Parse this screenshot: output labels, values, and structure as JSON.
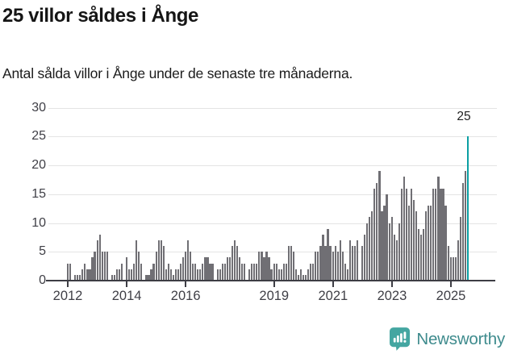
{
  "header": {
    "title": "25 villor såldes i Ånge",
    "subtitle": "Antal sålda villor i Ånge under de senaste tre månaderna."
  },
  "chart_data": {
    "type": "bar",
    "title": "25 villor såldes i Ånge",
    "subtitle": "Antal sålda villor i Ånge under de senaste tre månaderna.",
    "x_start": "2012-01",
    "x_end": "2025-08",
    "x_frequency": "monthly",
    "values": [
      3,
      3,
      0,
      1,
      1,
      1,
      2,
      3,
      2,
      2,
      4,
      5,
      7,
      8,
      5,
      5,
      5,
      0,
      1,
      1,
      2,
      2,
      3,
      0,
      4,
      2,
      2,
      3,
      7,
      5,
      3,
      0,
      1,
      1,
      2,
      3,
      5,
      7,
      7,
      6,
      2,
      3,
      2,
      1,
      2,
      2,
      3,
      4,
      5,
      7,
      5,
      3,
      3,
      2,
      2,
      3,
      4,
      4,
      3,
      3,
      0,
      2,
      2,
      3,
      3,
      4,
      4,
      6,
      7,
      6,
      4,
      3,
      3,
      0,
      2,
      3,
      3,
      3,
      5,
      5,
      4,
      5,
      4,
      2,
      3,
      3,
      2,
      2,
      3,
      3,
      6,
      6,
      5,
      2,
      1,
      2,
      1,
      1,
      2,
      3,
      3,
      5,
      5,
      6,
      8,
      6,
      9,
      6,
      5,
      6,
      5,
      7,
      5,
      3,
      2,
      7,
      6,
      6,
      7,
      0,
      6,
      8,
      10,
      11,
      12,
      16,
      17,
      19,
      12,
      13,
      15,
      10,
      11,
      8,
      7,
      10,
      16,
      18,
      16,
      13,
      16,
      14,
      12,
      9,
      8,
      9,
      12,
      13,
      13,
      16,
      16,
      18,
      16,
      16,
      13,
      6,
      4,
      4,
      4,
      7,
      11,
      17,
      19,
      25
    ],
    "highlight_last": true,
    "last_value_label": "25",
    "ylim": [
      0,
      30
    ],
    "yticks": [
      0,
      5,
      10,
      15,
      20,
      25,
      30
    ],
    "xtick_years": [
      2012,
      2014,
      2016,
      2019,
      2021,
      2023,
      2025
    ],
    "grid": true,
    "legend": "none",
    "colors": {
      "bar": "#706f74",
      "highlight": "#0b9fa3",
      "gridline": "#e4e4e4",
      "axis": "#3d3d44",
      "tick_text": "#3f3f46"
    }
  },
  "footer": {
    "brand": "Newsworthy",
    "logo_icon": "bar-chart-speech-bubble-icon",
    "brand_text_color": "#3e8b8d",
    "icon_color": "#44a6a1"
  }
}
